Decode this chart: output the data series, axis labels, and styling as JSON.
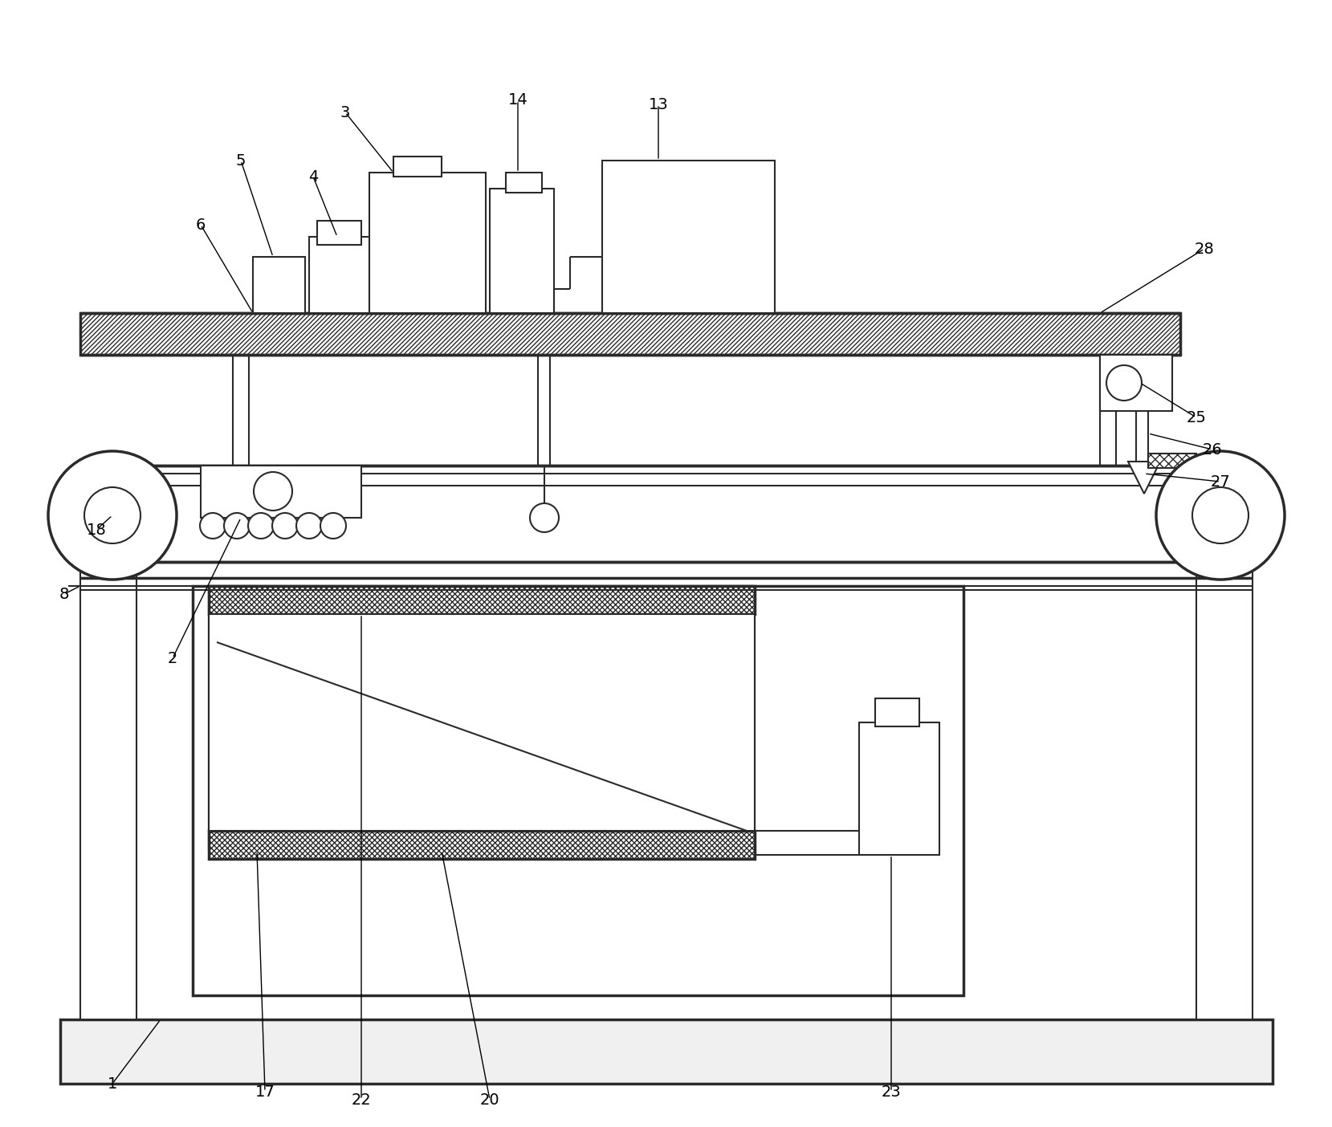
{
  "bg_color": "#ffffff",
  "lc": "#2a2a2a",
  "lw": 1.5,
  "lw2": 2.5,
  "fig_w": 16.59,
  "fig_h": 14.04
}
